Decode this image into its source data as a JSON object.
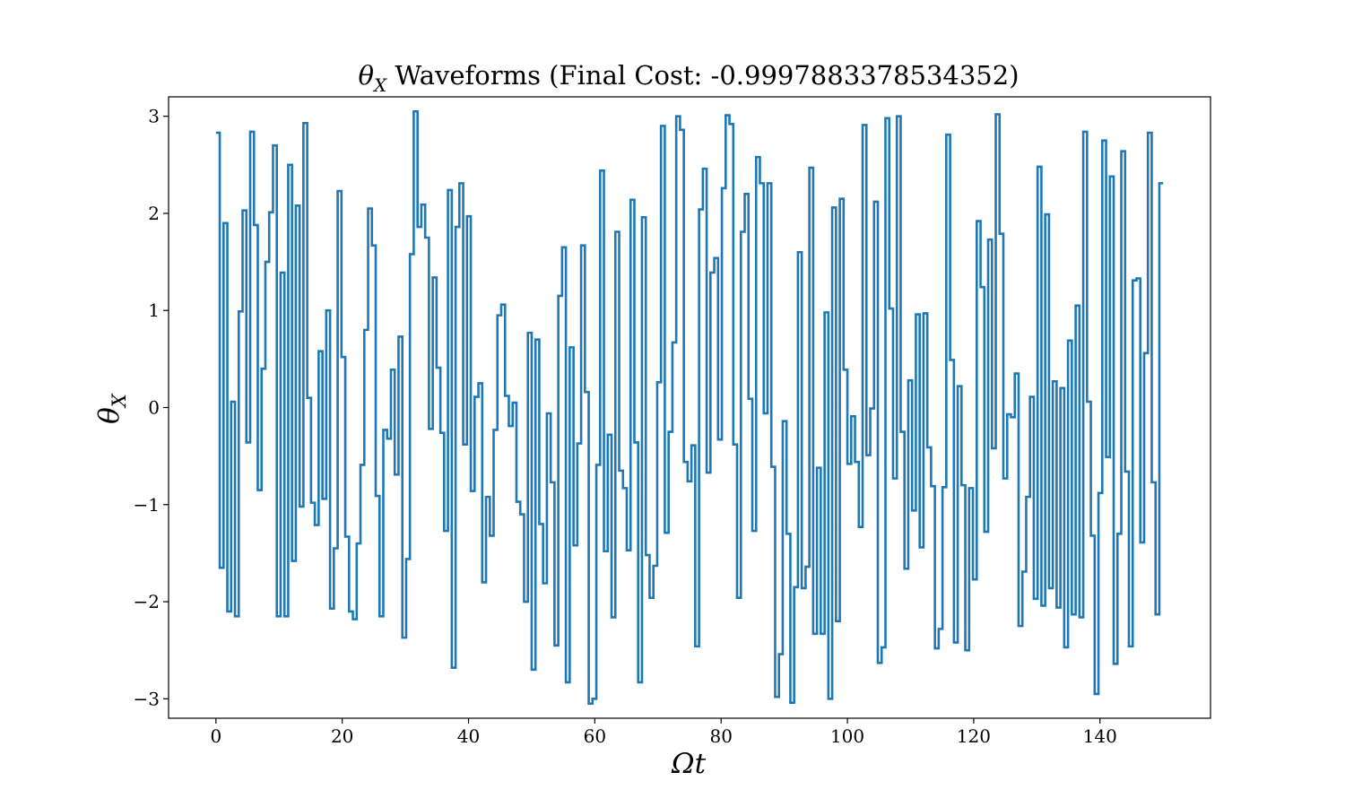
{
  "chart_data": {
    "type": "line",
    "drawstyle": "steps-post",
    "title": {
      "symbol": "θ",
      "symbol_subscript": "X",
      "text": " Waveforms (Final Cost: -0.9997883378534352)"
    },
    "xlabel": "Ωt",
    "ylabel": {
      "symbol": "θ",
      "subscript": "X"
    },
    "xlim": [
      -7.5,
      157.5
    ],
    "ylim": [
      -3.2,
      3.2
    ],
    "xticks": [
      0,
      20,
      40,
      60,
      80,
      100,
      120,
      140
    ],
    "yticks": [
      3,
      2,
      1,
      0,
      -1,
      -2,
      -3
    ],
    "ytick_labels": [
      "3",
      "2",
      "1",
      "0",
      "−1",
      "−2",
      "−3"
    ],
    "grid": false,
    "legend": false,
    "color": "#1f77b4",
    "series": [
      {
        "x_start": 0,
        "x_end": 150,
        "values": [
          2.83,
          -1.65,
          1.9,
          -2.1,
          0.06,
          -2.15,
          0.99,
          2.03,
          -0.36,
          2.84,
          1.88,
          -0.85,
          0.4,
          1.5,
          2.01,
          2.7,
          -2.15,
          1.39,
          -2.15,
          2.5,
          -1.58,
          2.08,
          -1.02,
          2.93,
          0.1,
          -0.98,
          -1.21,
          0.58,
          -0.94,
          1.0,
          -2.07,
          -1.45,
          2.23,
          0.52,
          -1.33,
          -2.1,
          -2.18,
          -1.4,
          -0.59,
          0.8,
          2.05,
          1.67,
          -0.91,
          -2.15,
          -0.23,
          -0.32,
          0.39,
          -0.69,
          0.73,
          -2.37,
          -1.56,
          1.58,
          3.05,
          1.86,
          2.09,
          1.75,
          -0.22,
          1.34,
          0.41,
          -0.26,
          -1.27,
          2.24,
          -2.68,
          1.86,
          2.31,
          -0.38,
          1.97,
          -0.86,
          0.11,
          0.25,
          -1.8,
          -0.92,
          -1.32,
          -0.23,
          0.95,
          1.06,
          0.12,
          -0.19,
          0.05,
          -0.97,
          -1.1,
          -2.0,
          0.77,
          -2.7,
          0.7,
          -1.2,
          -1.81,
          -0.06,
          -0.77,
          -2.45,
          1.15,
          1.65,
          -2.83,
          0.62,
          -1.42,
          -0.37,
          1.67,
          0.16,
          -3.05,
          -3.0,
          -0.59,
          2.44,
          -1.48,
          -0.28,
          -2.16,
          1.81,
          -0.65,
          -0.83,
          -1.47,
          2.14,
          -0.36,
          -2.83,
          1.96,
          -1.52,
          -1.96,
          -1.63,
          0.26,
          2.9,
          -1.29,
          -0.25,
          0.67,
          3.0,
          2.86,
          -0.56,
          -0.76,
          -0.39,
          -2.46,
          2.04,
          2.46,
          -0.67,
          1.39,
          1.54,
          -0.33,
          2.26,
          3.01,
          2.92,
          -0.38,
          -1.96,
          1.81,
          2.2,
          0.09,
          -1.27,
          2.58,
          2.31,
          -0.06,
          2.31,
          -0.61,
          -2.98,
          -2.54,
          -0.14,
          -1.3,
          -3.04,
          -1.85,
          1.6,
          -1.86,
          -1.64,
          2.47,
          -2.33,
          -0.62,
          -2.33,
          0.98,
          -3.0,
          2.06,
          -2.2,
          2.15,
          0.39,
          -0.58,
          -0.09,
          -0.56,
          -1.23,
          2.91,
          -0.49,
          -0.01,
          2.12,
          -2.63,
          -2.47,
          2.98,
          1.02,
          -0.73,
          3.0,
          -0.25,
          -1.66,
          0.28,
          -1.06,
          0.96,
          -1.44,
          0.97,
          -0.41,
          -0.81,
          -2.48,
          -2.28,
          -0.82,
          2.81,
          0.49,
          -2.42,
          0.22,
          -0.8,
          -2.5,
          -0.83,
          -1.77,
          1.92,
          1.24,
          -1.28,
          1.73,
          -0.42,
          3.02,
          1.79,
          -0.73,
          -0.07,
          -0.1,
          0.35,
          -2.25,
          -1.69,
          -0.92,
          0.11,
          -1.97,
          2.48,
          -2.04,
          1.99,
          -1.86,
          0.27,
          -2.06,
          0.2,
          -2.47,
          0.69,
          -2.13,
          1.05,
          -2.16,
          2.84,
          0.06,
          -1.32,
          -2.95,
          -0.88,
          2.75,
          -0.51,
          2.38,
          -2.64,
          -1.3,
          2.64,
          -0.66,
          -2.46,
          1.31,
          1.33,
          -1.39,
          0.56,
          2.83,
          -0.77,
          -2.13,
          2.31
        ]
      }
    ]
  }
}
